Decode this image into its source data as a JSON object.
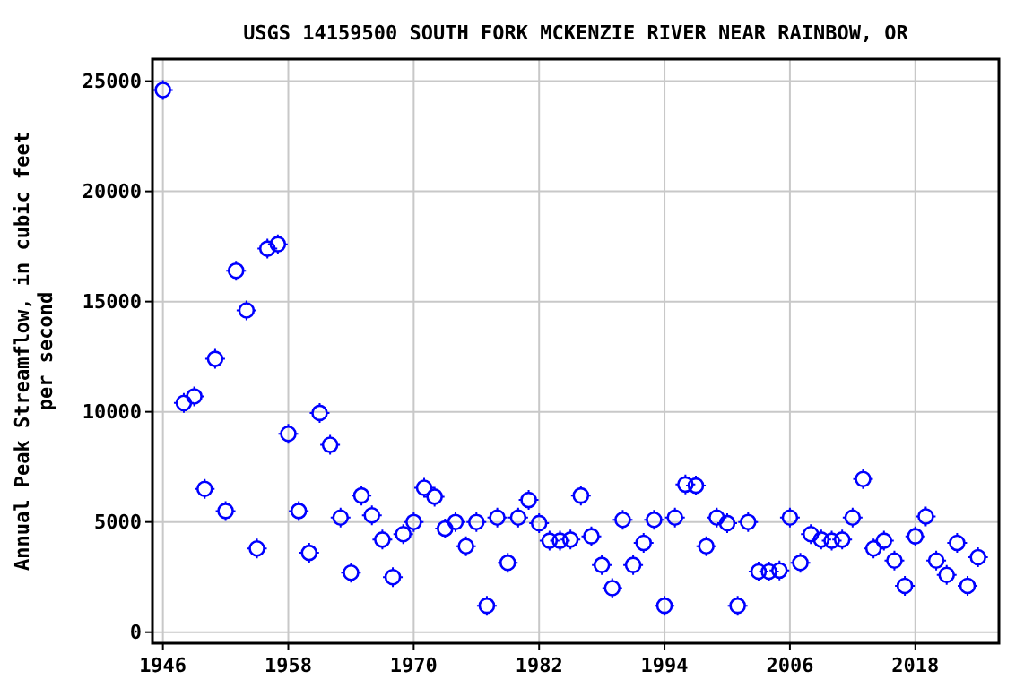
{
  "chart_data": {
    "type": "scatter",
    "title": "USGS 14159500 SOUTH FORK MCKENZIE RIVER NEAR RAINBOW, OR",
    "ylabel": "Annual Peak Streamflow, in cubic feet per second",
    "x": [
      1946,
      1948,
      1949,
      1950,
      1951,
      1952,
      1953,
      1954,
      1955,
      1956,
      1957,
      1958,
      1959,
      1960,
      1961,
      1962,
      1963,
      1964,
      1965,
      1966,
      1967,
      1968,
      1969,
      1970,
      1971,
      1972,
      1973,
      1974,
      1975,
      1976,
      1977,
      1978,
      1979,
      1980,
      1981,
      1982,
      1983,
      1984,
      1985,
      1986,
      1987,
      1988,
      1989,
      1990,
      1991,
      1992,
      1993,
      1994,
      1995,
      1996,
      1997,
      1998,
      1999,
      2000,
      2001,
      2002,
      2003,
      2004,
      2005,
      2006,
      2007,
      2008,
      2009,
      2010,
      2011,
      2012,
      2013,
      2014,
      2015,
      2016,
      2017,
      2018,
      2019,
      2020,
      2021,
      2022,
      2023,
      2024
    ],
    "series": [
      {
        "color": "#0000ff",
        "values": [
          24600,
          10400,
          10700,
          6500,
          12400,
          5500,
          16400,
          14600,
          3800,
          17400,
          17600,
          9000,
          5500,
          3600,
          9950,
          8500,
          5200,
          2700,
          6200,
          5300,
          4200,
          2500,
          4450,
          5000,
          6550,
          6150,
          4700,
          5000,
          3900,
          5000,
          1200,
          5200,
          3150,
          5200,
          6000,
          4950,
          4150,
          4150,
          4200,
          6200,
          4350,
          3050,
          2000,
          5100,
          3050,
          4050,
          5100,
          1200,
          5200,
          6700,
          6650,
          3900,
          5200,
          4950,
          1200,
          5000,
          2750,
          2750,
          2800,
          5200,
          3150,
          4450,
          4200,
          4150,
          4200,
          5200,
          6950,
          3800,
          4150,
          3250,
          2100,
          4350,
          5250,
          3250,
          2600,
          4050,
          2100,
          3400
        ]
      }
    ],
    "xlim": [
      1945,
      2026
    ],
    "xticks": [
      1946,
      1958,
      1970,
      1982,
      1994,
      2006,
      2018
    ],
    "ylim": [
      -500,
      26000
    ],
    "yticks": [
      0,
      5000,
      10000,
      15000,
      20000,
      25000
    ],
    "grid": true,
    "marker": "circle"
  }
}
